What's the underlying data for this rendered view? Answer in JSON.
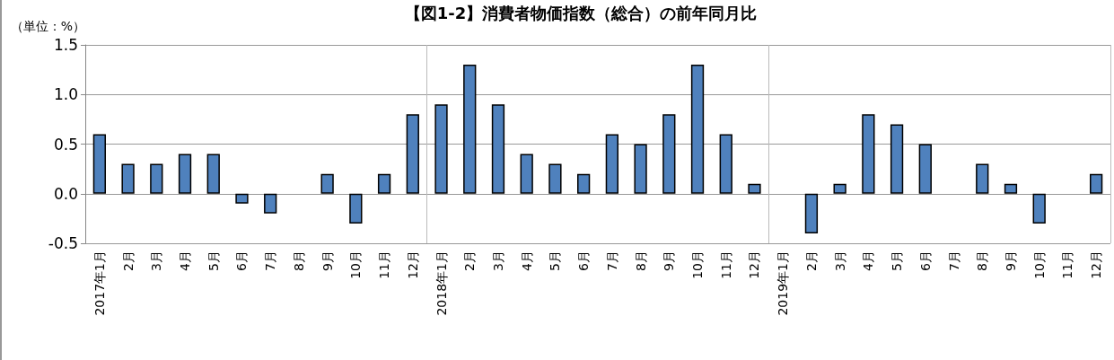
{
  "chart_data": {
    "type": "bar",
    "title": "【図1-2】消費者物価指数（総合）の前年同月比",
    "ylabel": "（単位：%）",
    "categories": [
      "2017年1月",
      "2月",
      "3月",
      "4月",
      "5月",
      "6月",
      "7月",
      "8月",
      "9月",
      "10月",
      "11月",
      "12月",
      "2018年1月",
      "2月",
      "3月",
      "4月",
      "5月",
      "6月",
      "7月",
      "8月",
      "9月",
      "10月",
      "11月",
      "12月",
      "2019年1月",
      "2月",
      "3月",
      "4月",
      "5月",
      "6月",
      "7月",
      "8月",
      "9月",
      "10月",
      "11月",
      "12月"
    ],
    "values": [
      0.6,
      0.3,
      0.3,
      0.4,
      0.4,
      -0.1,
      -0.2,
      0,
      0.2,
      -0.3,
      0.2,
      0.8,
      0.9,
      1.3,
      0.9,
      0.4,
      0.3,
      0.2,
      0.6,
      0.5,
      0.8,
      1.3,
      0.6,
      0.1,
      0,
      -0.4,
      0.1,
      0.8,
      0.7,
      0.5,
      0,
      0.3,
      0.1,
      -0.3,
      0,
      0.2
    ],
    "color": "#4f81bd",
    "ylim": [
      -0.5,
      1.5
    ],
    "yticks": [
      {
        "value": -0.5,
        "label": "-0.5"
      },
      {
        "value": 0,
        "label": "0.0"
      },
      {
        "value": 0.5,
        "label": "0.5"
      },
      {
        "value": 1,
        "label": "1.0"
      },
      {
        "value": 1.5,
        "label": "1.5"
      }
    ],
    "grid": true
  }
}
